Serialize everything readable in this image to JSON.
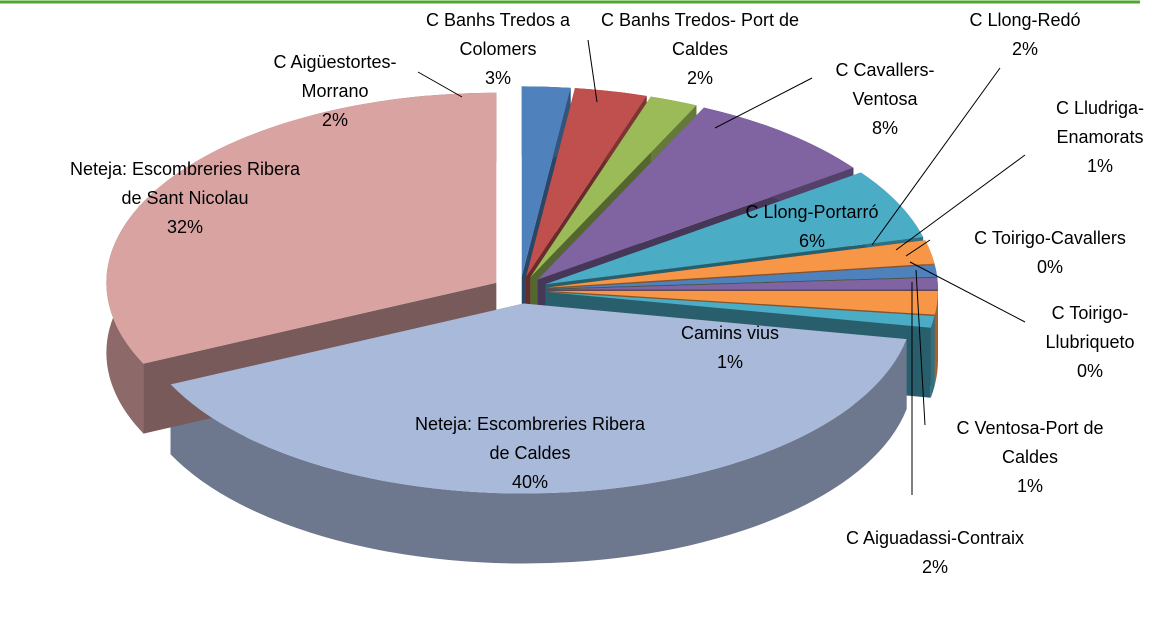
{
  "chart_data": {
    "type": "pie",
    "categories": [
      "C Aigüestortes-Morrano",
      "C Banhs Tredos a Colomers",
      "C Banhs Tredos- Port de Caldes",
      "C Cavallers-Ventosa",
      "C Llong-Portarró",
      "C Llong-Redó",
      "C Lludriga-Enamorats",
      "C Toirigo-Cavallers",
      "C Toirigo-Llubriqueto",
      "C Ventosa-Port de Caldes",
      "C Aiguadassi-Contraix",
      "Camins vius",
      "Neteja: Escombreries Ribera de Caldes",
      "Neteja: Escombreries Ribera de Sant Nicolau"
    ],
    "values": [
      2,
      3,
      2,
      8,
      6,
      2,
      1,
      0,
      0,
      1,
      2,
      1,
      40,
      32
    ],
    "value_labels": [
      "2%",
      "3%",
      "2%",
      "8%",
      "6%",
      "2%",
      "1%",
      "0%",
      "0%",
      "1%",
      "2%",
      "1%",
      "40%",
      "32%"
    ],
    "colors": [
      "#4F81BD",
      "#C0504D",
      "#9BBB59",
      "#8064A2",
      "#4BACC6",
      "#F79646",
      "#4F81BD",
      "#C0504D",
      "#9BBB59",
      "#8064A2",
      "#F79646",
      "#4BACC6",
      "#A8B9DA",
      "#D9A3A1"
    ]
  }
}
